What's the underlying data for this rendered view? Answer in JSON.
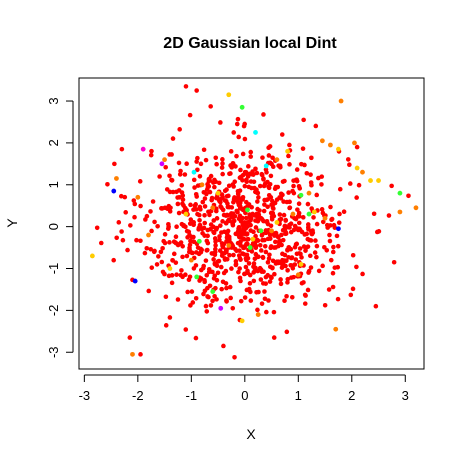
{
  "chart_data": {
    "type": "scatter",
    "title": "2D Gaussian local Dint",
    "xlabel": "X",
    "ylabel": "Y",
    "xlim": [
      -3.1,
      3.35
    ],
    "ylim": [
      -3.4,
      3.55
    ],
    "x_ticks": [
      -3,
      -2,
      -1,
      0,
      1,
      2,
      3
    ],
    "y_ticks": [
      -3,
      -2,
      -1,
      0,
      1,
      2,
      3
    ],
    "x_tick_labels": [
      "-3",
      "-2",
      "-1",
      "0",
      "1",
      "2",
      "3"
    ],
    "y_tick_labels": [
      "-3",
      "-2",
      "-1",
      "0",
      "1",
      "2",
      "3"
    ],
    "grid": false,
    "legend": "none",
    "point_color_scale": "rainbow (red = majority, orange, yellow, green, cyan, blue, purple)",
    "colors": {
      "red": "#ff0000",
      "orange": "#ff7f00",
      "yellow": "#ffcc00",
      "green": "#33ff33",
      "cyan": "#00ffff",
      "blue": "#0000ff",
      "purple": "#cc00ff",
      "magenta": "#ff00cc"
    },
    "series": [
      {
        "color": "#ff7f00",
        "x": [
          1.8,
          -2.1,
          2.05,
          1.6,
          1.7,
          -2.4,
          3.2,
          2.9,
          -1.5,
          1.45,
          -0.6,
          -2.0,
          0.5,
          1.2,
          -0.3,
          0.9,
          1.0,
          -1.0,
          2.2,
          0.25,
          -0.8,
          1.5,
          -1.8,
          0.6
        ],
        "y": [
          3.0,
          -3.05,
          2.0,
          1.95,
          -2.45,
          1.15,
          0.45,
          0.35,
          1.6,
          2.05,
          0.45,
          0.7,
          -0.1,
          0.8,
          -0.45,
          0.3,
          -1.15,
          -0.8,
          1.3,
          -2.1,
          1.0,
          0.2,
          -0.2,
          1.6
        ]
      },
      {
        "color": "#ffcc00",
        "x": [
          -0.3,
          -2.85,
          2.1,
          2.35,
          2.5,
          -0.05,
          0.8,
          1.3,
          -1.4,
          0.15,
          -0.5,
          1.75,
          0.6,
          -1.1,
          1.05
        ],
        "y": [
          3.15,
          -0.7,
          1.4,
          1.1,
          1.1,
          -2.25,
          1.8,
          0.35,
          -1.0,
          -0.3,
          0.8,
          1.85,
          0.1,
          0.3,
          -0.9
        ]
      },
      {
        "color": "#33ff33",
        "x": [
          -0.05,
          2.9,
          -0.85,
          -0.9,
          0.05,
          1.05,
          0.1,
          1.2,
          -0.6,
          0.3
        ],
        "y": [
          2.85,
          0.8,
          -0.35,
          -1.2,
          0.4,
          0.75,
          -0.5,
          0.3,
          -1.55,
          -0.1
        ]
      },
      {
        "color": "#00ffff",
        "x": [
          0.2,
          -0.95,
          0.4
        ],
        "y": [
          2.25,
          1.3,
          1.45
        ]
      },
      {
        "color": "#0000ff",
        "x": [
          -2.45,
          -2.05,
          1.75
        ],
        "y": [
          0.85,
          -1.3,
          -0.05
        ]
      },
      {
        "color": "#cc00ff",
        "x": [
          -1.55,
          -0.45
        ],
        "y": [
          1.5,
          -1.95
        ]
      },
      {
        "color": "#ff00cc",
        "x": [
          -1.9
        ],
        "y": [
          1.85
        ]
      }
    ],
    "majority": {
      "color": "#ff0000",
      "count": 950,
      "distribution": "bivariate gaussian, mean 0, sd 1",
      "fixed_points": {
        "x": [
          -1.1,
          -0.9,
          1.1,
          -2.15,
          -1.95,
          0.55,
          2.1,
          -0.4,
          0.7,
          2.45
        ],
        "y": [
          3.35,
          3.25,
          2.55,
          -2.65,
          -3.05,
          -2.65,
          1.9,
          -2.85,
          2.2,
          -1.9
        ]
      }
    }
  }
}
